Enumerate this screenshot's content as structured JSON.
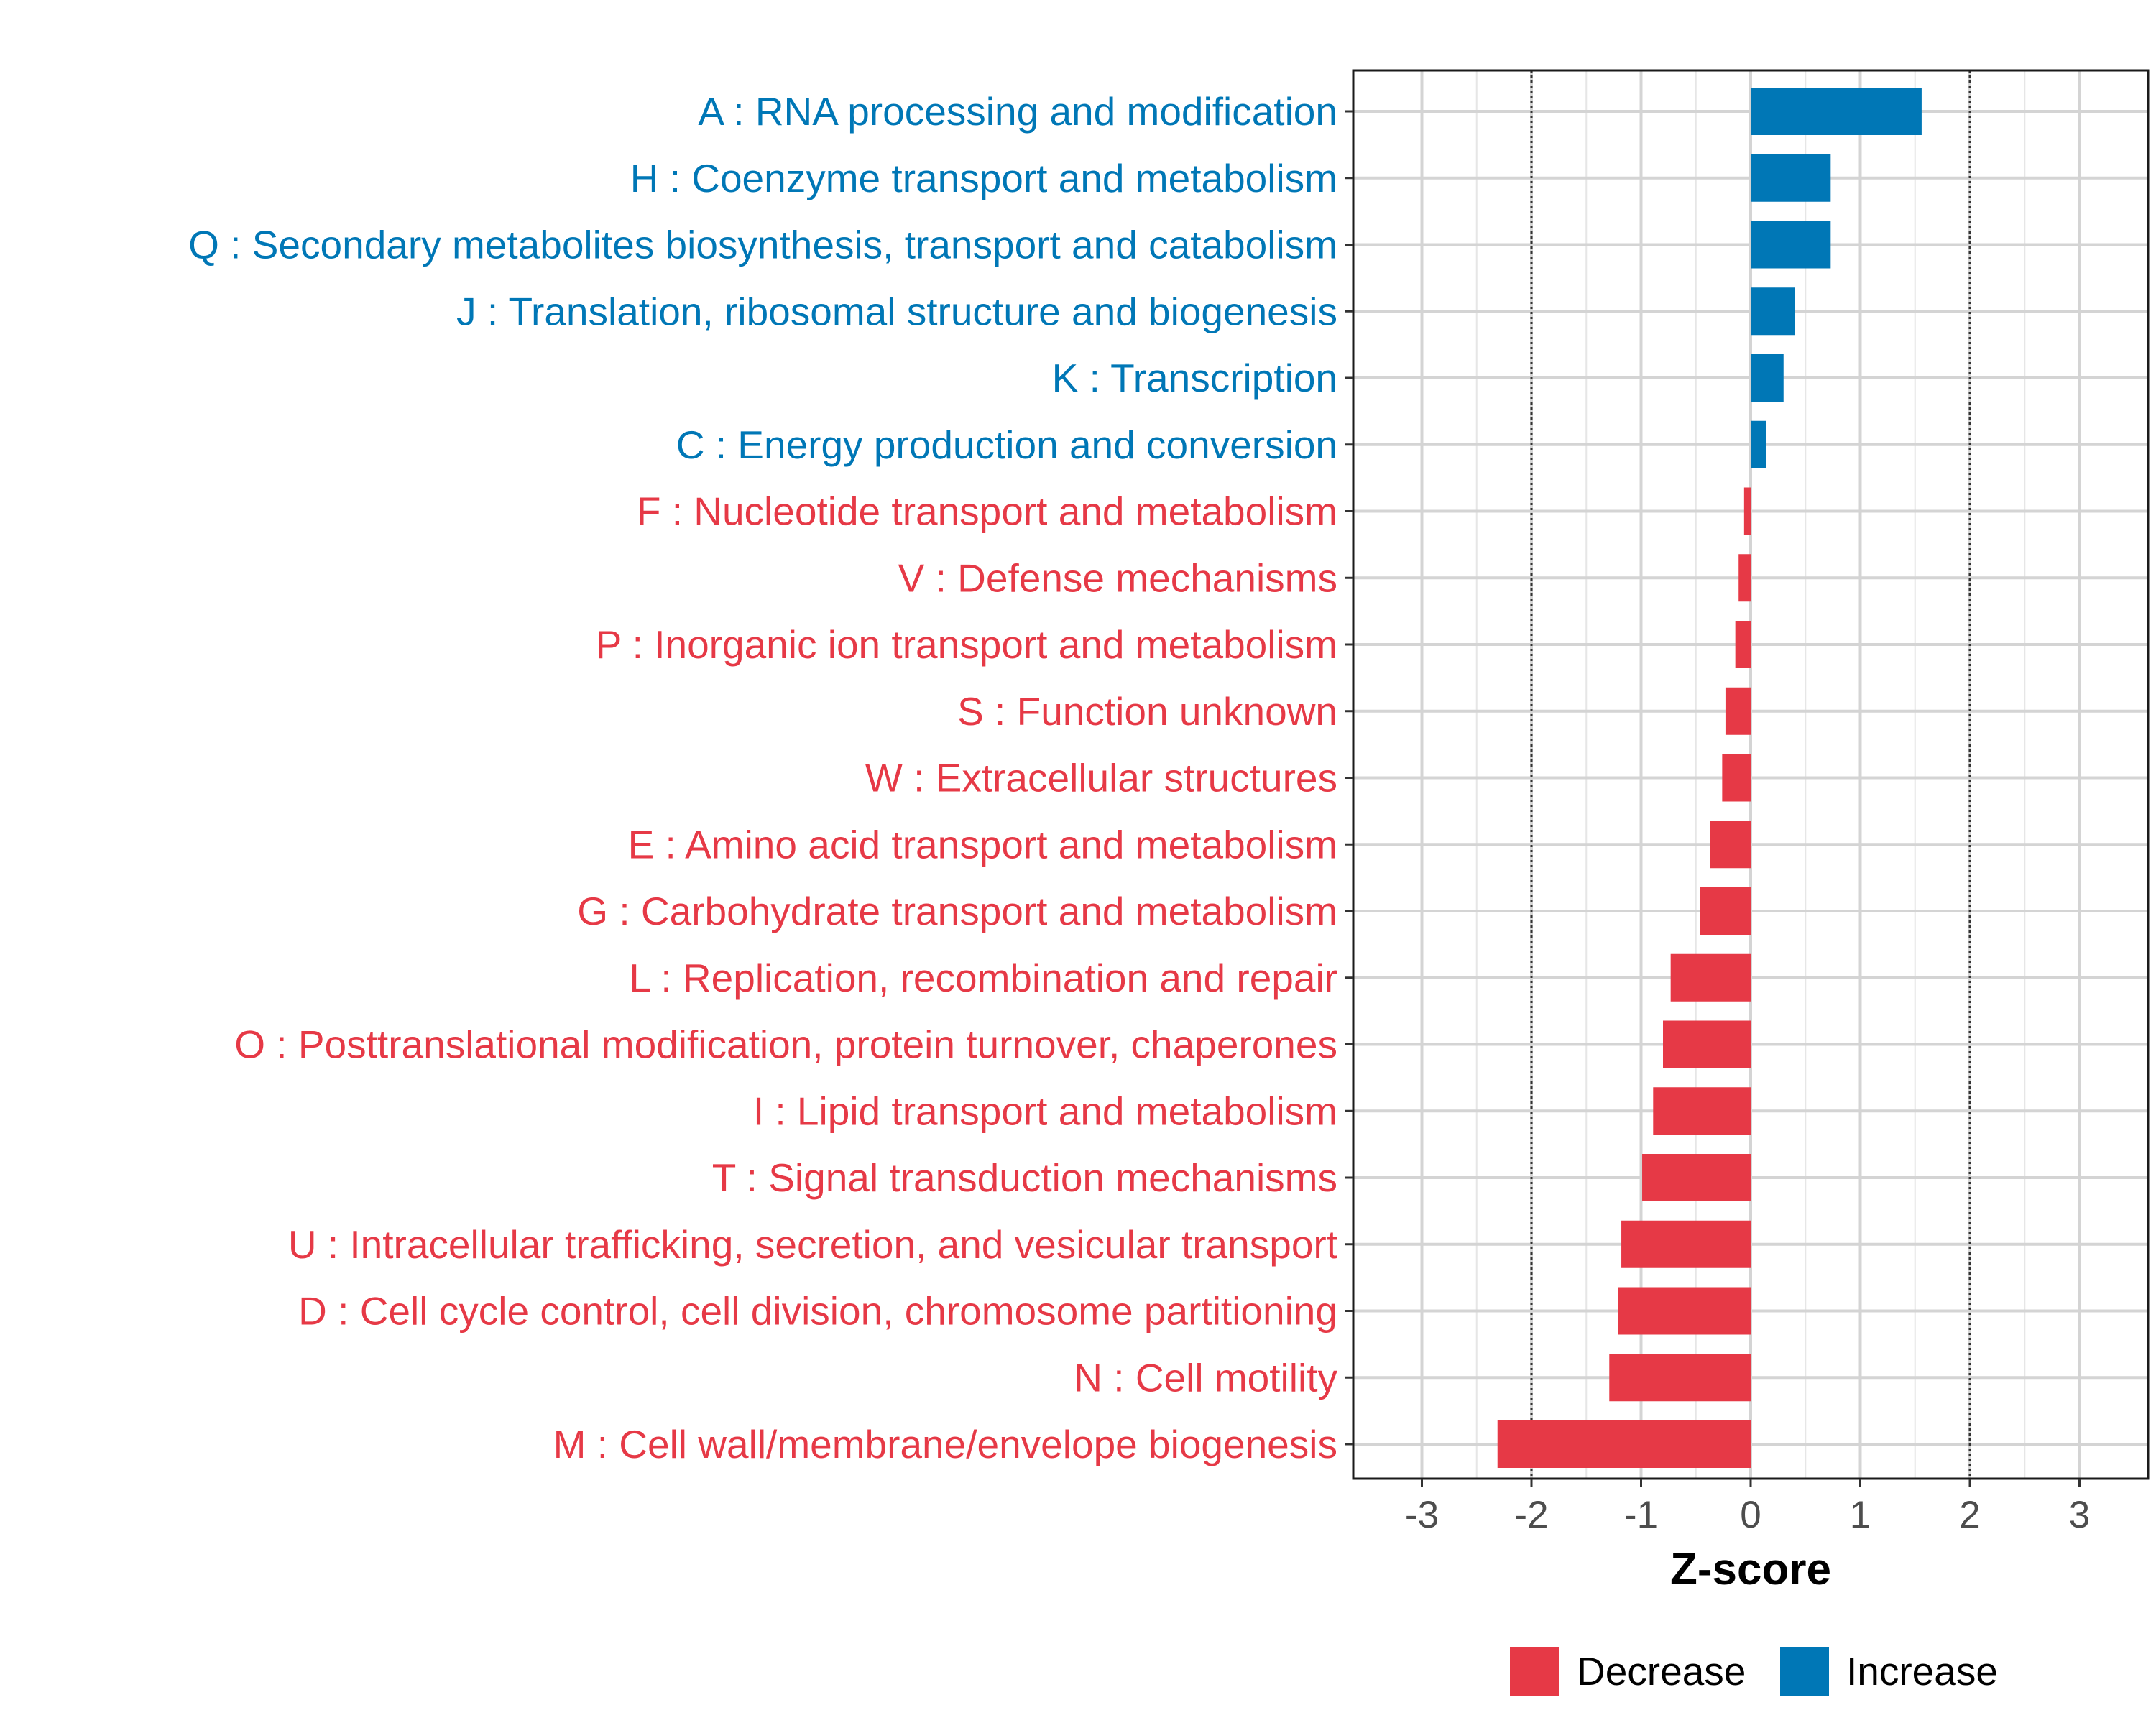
{
  "chart_data": {
    "type": "bar",
    "orientation": "horizontal",
    "title": "",
    "xlabel": "Z-score",
    "ylabel": "",
    "xlim": [
      -3.6,
      3.6
    ],
    "xticks": [
      -3,
      -2,
      -1,
      0,
      1,
      2,
      3
    ],
    "xtick_labels": [
      "-3",
      "-2",
      "-1",
      "0",
      "1",
      "2",
      "3"
    ],
    "reference_lines": [
      -2,
      2
    ],
    "grid": true,
    "colors": {
      "Decrease": "#e63946",
      "Increase": "#0077b6"
    },
    "categories": [
      "A : RNA processing and modification",
      "H : Coenzyme transport and metabolism",
      "Q : Secondary metabolites biosynthesis, transport and catabolism",
      "J : Translation, ribosomal structure and biogenesis",
      "K : Transcription",
      "C : Energy production and conversion",
      "F : Nucleotide transport and metabolism",
      "V : Defense mechanisms",
      "P : Inorganic ion transport and metabolism",
      "S : Function unknown",
      "W : Extracellular structures",
      "E : Amino acid transport and metabolism",
      "G : Carbohydrate transport and metabolism",
      "L : Replication, recombination and repair",
      "O : Posttranslational modification, protein turnover, chaperones",
      "I : Lipid transport and metabolism",
      "T : Signal transduction mechanisms",
      "U : Intracellular trafficking, secretion, and vesicular transport",
      "D : Cell cycle control, cell division, chromosome partitioning",
      "N : Cell motility",
      "M : Cell wall/membrane/envelope biogenesis"
    ],
    "values": [
      1.56,
      0.73,
      0.73,
      0.4,
      0.3,
      0.14,
      -0.06,
      -0.11,
      -0.14,
      -0.23,
      -0.26,
      -0.37,
      -0.46,
      -0.73,
      -0.8,
      -0.89,
      -0.99,
      -1.18,
      -1.21,
      -1.29,
      -2.31
    ],
    "groups": [
      "Increase",
      "Increase",
      "Increase",
      "Increase",
      "Increase",
      "Increase",
      "Decrease",
      "Decrease",
      "Decrease",
      "Decrease",
      "Decrease",
      "Decrease",
      "Decrease",
      "Decrease",
      "Decrease",
      "Decrease",
      "Decrease",
      "Decrease",
      "Decrease",
      "Decrease",
      "Decrease"
    ],
    "legend": {
      "position": "bottom",
      "entries": [
        {
          "label": "Decrease",
          "color": "#e63946"
        },
        {
          "label": "Increase",
          "color": "#0077b6"
        }
      ]
    }
  }
}
